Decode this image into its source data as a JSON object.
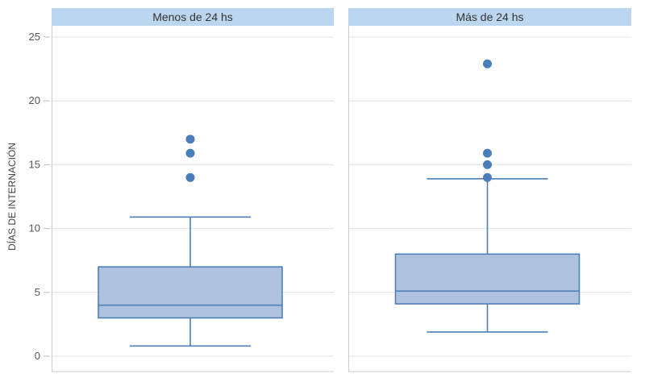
{
  "chart_data": {
    "type": "boxplot",
    "ylabel": "DÍAS DE INTERNACIÓN",
    "ylim": [
      0,
      25
    ],
    "yticks": [
      0,
      5,
      10,
      15,
      20,
      25
    ],
    "grid": true,
    "colors": {
      "box_fill": "#aec2e0",
      "box_stroke": "#4e7fb8",
      "outlier": "#4a7ebb",
      "header_fill": "#bcd6ef",
      "grid": "#e3e3e3"
    },
    "panels": [
      {
        "name": "Menos de 24 hs",
        "whisker_low": 0.8,
        "q1": 3,
        "median": 4,
        "q3": 7,
        "whisker_high": 10.9,
        "outliers": [
          14,
          15.9,
          17
        ]
      },
      {
        "name": "Más de 24 hs",
        "whisker_low": 1.9,
        "q1": 4.1,
        "median": 5.1,
        "q3": 8,
        "whisker_high": 13.9,
        "outliers": [
          14,
          15,
          15.9,
          22.9
        ]
      }
    ]
  }
}
